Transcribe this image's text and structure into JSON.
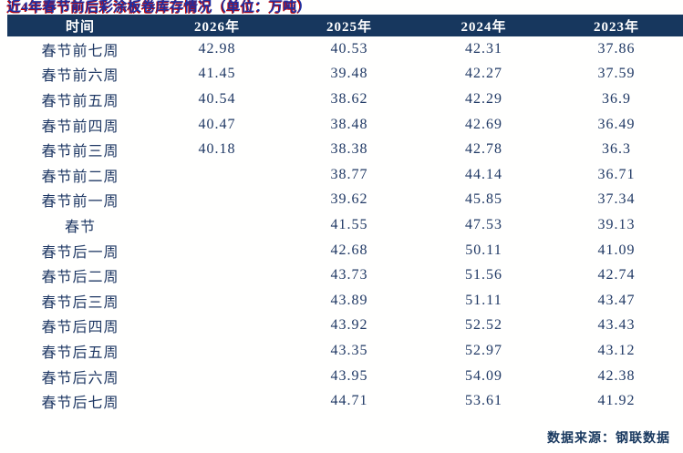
{
  "colors": {
    "header_background": "#17375E",
    "header_text": "#FFFFFF",
    "body_text": "#1F3864",
    "title_text": "#1E2FA2",
    "title_shadow_red": "#C40000",
    "page_background": "#FFFFFE"
  },
  "chart_data": {
    "type": "table",
    "title": "近4年春节前后彩涂板卷库存情况（单位：万吨）",
    "columns": [
      "时间",
      "2026年",
      "2025年",
      "2024年",
      "2023年"
    ],
    "rows": [
      [
        "春节前七周",
        "42.98",
        "40.53",
        "42.31",
        "37.86"
      ],
      [
        "春节前六周",
        "41.45",
        "39.48",
        "42.27",
        "37.59"
      ],
      [
        "春节前五周",
        "40.54",
        "38.62",
        "42.29",
        "36.9"
      ],
      [
        "春节前四周",
        "40.47",
        "38.48",
        "42.69",
        "36.49"
      ],
      [
        "春节前三周",
        "40.18",
        "38.38",
        "42.78",
        "36.3"
      ],
      [
        "春节前二周",
        "",
        "38.77",
        "44.14",
        "36.71"
      ],
      [
        "春节前一周",
        "",
        "39.62",
        "45.85",
        "37.34"
      ],
      [
        "春节",
        "",
        "41.55",
        "47.53",
        "39.13"
      ],
      [
        "春节后一周",
        "",
        "42.68",
        "50.11",
        "41.09"
      ],
      [
        "春节后二周",
        "",
        "43.73",
        "51.56",
        "42.74"
      ],
      [
        "春节后三周",
        "",
        "43.89",
        "51.11",
        "43.47"
      ],
      [
        "春节后四周",
        "",
        "43.92",
        "52.52",
        "43.43"
      ],
      [
        "春节后五周",
        "",
        "43.35",
        "52.97",
        "43.12"
      ],
      [
        "春节后六周",
        "",
        "43.95",
        "54.09",
        "42.38"
      ],
      [
        "春节后七周",
        "",
        "44.71",
        "53.61",
        "41.92"
      ]
    ],
    "source_note": "数据来源：钢联数据",
    "legend_position": "none",
    "grid": false
  }
}
